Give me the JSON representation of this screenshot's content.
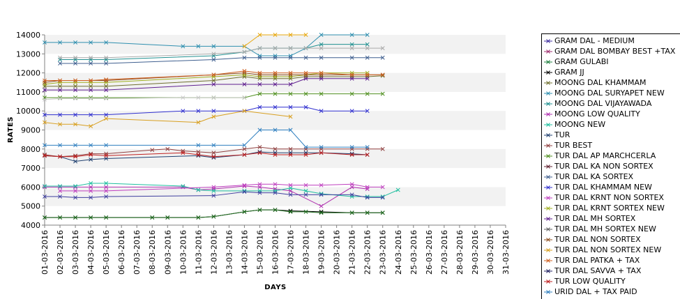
{
  "chart_data": {
    "type": "line",
    "xlabel": "DAYS",
    "ylabel": "RATES",
    "ylim": [
      4000,
      14000
    ],
    "yticks": [
      4000,
      5000,
      6000,
      7000,
      8000,
      9000,
      10000,
      11000,
      12000,
      13000,
      14000
    ],
    "grid": "alternating horizontal bands",
    "legend_position": "right",
    "categories": [
      "01-03-2016",
      "02-03-2016",
      "03-03-2016",
      "04-03-2016",
      "05-03-2016",
      "06-03-2016",
      "07-03-2016",
      "08-03-2016",
      "09-03-2016",
      "10-03-2016",
      "11-03-2016",
      "12-03-2016",
      "13-03-2016",
      "14-03-2016",
      "15-03-2016",
      "16-03-2016",
      "17-03-2016",
      "18-03-2016",
      "19-03-2016",
      "20-03-2016",
      "21-03-2016",
      "22-03-2016",
      "23-03-2016",
      "24-03-2016",
      "25-03-2016",
      "26-03-2016",
      "27-03-2016",
      "28-03-2016",
      "29-03-2016",
      "30-03-2016",
      "31-03-2016"
    ],
    "series": [
      {
        "name": "GRAM DAL - MEDIUM",
        "color": "#3f2f9f",
        "values": [
          null,
          null,
          null,
          null,
          null,
          null,
          null,
          null,
          null,
          null,
          null,
          null,
          null,
          null,
          null,
          null,
          null,
          null,
          null,
          null,
          null,
          null,
          null,
          null,
          null,
          null,
          null,
          null,
          null,
          null,
          null
        ]
      },
      {
        "name": "GRAM DAL BOMBAY BEST +TAX",
        "color": "#9f2f6f",
        "values": [
          null,
          null,
          null,
          null,
          null,
          null,
          null,
          null,
          null,
          null,
          null,
          null,
          null,
          null,
          null,
          null,
          null,
          null,
          null,
          null,
          null,
          null,
          null,
          null,
          null,
          null,
          null,
          null,
          null,
          null,
          null
        ]
      },
      {
        "name": "GRAM GULABI",
        "color": "#1f7f3f",
        "values": [
          null,
          null,
          null,
          null,
          null,
          null,
          null,
          null,
          null,
          null,
          null,
          null,
          null,
          null,
          null,
          null,
          null,
          null,
          null,
          null,
          null,
          null,
          null,
          null,
          null,
          null,
          null,
          null,
          null,
          null,
          null
        ]
      },
      {
        "name": "GRAM JJ",
        "color": "#000000",
        "values": [
          4400,
          4400,
          4400,
          4400,
          4400,
          null,
          null,
          4400,
          4400,
          null,
          4400,
          4450,
          null,
          4700,
          4800,
          4800,
          4750,
          null,
          4700,
          null,
          4650,
          4650,
          4650,
          null,
          null,
          null,
          null,
          null,
          null,
          null,
          null
        ]
      },
      {
        "name": "MOONG DAL KHAMMAM",
        "color": "#6f6f2f",
        "values": [
          11300,
          11300,
          11300,
          11300,
          11300,
          null,
          null,
          null,
          null,
          null,
          null,
          11600,
          null,
          11800,
          11700,
          11700,
          11700,
          11800,
          11800,
          null,
          11800,
          11800,
          11850,
          null,
          null,
          null,
          null,
          null,
          null,
          null,
          null
        ]
      },
      {
        "name": "MOONG DAL SURYAPET NEW",
        "color": "#2f8faf",
        "values": [
          13600,
          13600,
          13600,
          13600,
          13600,
          null,
          null,
          null,
          null,
          13400,
          13400,
          13400,
          null,
          13400,
          12900,
          12900,
          12900,
          13300,
          14000,
          null,
          14000,
          14000,
          null,
          null,
          null,
          null,
          null,
          null,
          null,
          null,
          null
        ]
      },
      {
        "name": "MOONG DAL VIJAYAWADA",
        "color": "#1f8f8f",
        "values": [
          null,
          12700,
          12700,
          12700,
          12700,
          null,
          null,
          null,
          null,
          null,
          null,
          12900,
          null,
          13100,
          13300,
          13300,
          13300,
          13300,
          13500,
          null,
          13500,
          13500,
          null,
          null,
          null,
          null,
          null,
          null,
          null,
          null,
          null
        ]
      },
      {
        "name": "MOONG LOW QUALITY",
        "color": "#af2faf",
        "values": [
          6000,
          6000,
          6000,
          6000,
          6000,
          null,
          null,
          null,
          null,
          6000,
          5850,
          5900,
          null,
          6050,
          6000,
          5900,
          5800,
          null,
          5000,
          null,
          6000,
          5900,
          null,
          null,
          null,
          null,
          null,
          null,
          null,
          null,
          null
        ]
      },
      {
        "name": "MOONG NEW",
        "color": "#1fbf9f",
        "values": [
          6050,
          6050,
          6050,
          6200,
          6200,
          null,
          null,
          null,
          null,
          6050,
          5850,
          5800,
          null,
          5800,
          5800,
          5800,
          5950,
          5800,
          5650,
          null,
          5500,
          5500,
          5500,
          5850,
          null,
          null,
          null,
          null,
          null,
          null,
          null
        ]
      },
      {
        "name": "TUR",
        "color": "#1f3f6f",
        "values": [
          7650,
          7600,
          7350,
          7450,
          7500,
          null,
          null,
          null,
          null,
          null,
          7650,
          7550,
          null,
          7700,
          7850,
          7800,
          7800,
          7800,
          7800,
          null,
          7750,
          7700,
          null,
          null,
          null,
          null,
          null,
          null,
          null,
          null,
          null
        ]
      },
      {
        "name": "TUR BEST",
        "color": "#8f3f3f",
        "values": [
          7700,
          7600,
          7650,
          7750,
          7750,
          null,
          null,
          7950,
          8000,
          7900,
          7850,
          7800,
          null,
          8000,
          8100,
          8000,
          8000,
          8000,
          8000,
          null,
          8000,
          8000,
          8000,
          null,
          null,
          null,
          null,
          null,
          null,
          null,
          null
        ]
      },
      {
        "name": "TUR DAL AP MARCHCERLA",
        "color": "#4f8f1f",
        "values": [
          10700,
          10700,
          10700,
          10700,
          10700,
          null,
          null,
          null,
          null,
          null,
          null,
          10700,
          null,
          10700,
          10900,
          10900,
          10900,
          10900,
          10900,
          null,
          10900,
          10900,
          10900,
          null,
          null,
          null,
          null,
          null,
          null,
          null,
          null
        ]
      },
      {
        "name": "TUR DAL KA NON SORTEX",
        "color": "#5f1f2f",
        "values": [
          null,
          null,
          null,
          null,
          null,
          null,
          null,
          null,
          null,
          null,
          null,
          null,
          null,
          null,
          null,
          null,
          null,
          null,
          null,
          null,
          null,
          null,
          null,
          null,
          null,
          null,
          null,
          null,
          null,
          null,
          null
        ]
      },
      {
        "name": "TUR DAL KA SORTEX",
        "color": "#3f5f8f",
        "values": [
          null,
          12500,
          12500,
          12500,
          12500,
          null,
          null,
          null,
          null,
          null,
          null,
          12700,
          null,
          12800,
          12800,
          12800,
          12800,
          12800,
          12800,
          null,
          12800,
          12800,
          12800,
          null,
          null,
          null,
          null,
          null,
          null,
          null,
          null
        ]
      },
      {
        "name": "TUR DAL KHAMMAM NEW",
        "color": "#2f2fcf",
        "values": [
          9800,
          9800,
          9800,
          9800,
          9800,
          null,
          null,
          null,
          null,
          10000,
          10000,
          10000,
          null,
          10000,
          10200,
          10200,
          10200,
          10200,
          10000,
          null,
          10000,
          10000,
          null,
          null,
          null,
          null,
          null,
          null,
          null,
          null,
          null
        ]
      },
      {
        "name": "TUR DAL KRNT NON SORTEX",
        "color": "#bf3fbf",
        "values": [
          null,
          5800,
          5800,
          5800,
          5800,
          null,
          null,
          null,
          null,
          null,
          null,
          6000,
          null,
          6100,
          6150,
          6150,
          6100,
          6100,
          6100,
          null,
          6150,
          6000,
          6000,
          null,
          null,
          null,
          null,
          null,
          null,
          null,
          null
        ]
      },
      {
        "name": "TUR DAL KRNT SORTEX NEW",
        "color": "#9faf1f",
        "values": [
          11400,
          11500,
          11500,
          11500,
          11500,
          null,
          null,
          null,
          null,
          null,
          null,
          11800,
          null,
          11900,
          11800,
          11800,
          11800,
          11900,
          12000,
          null,
          12000,
          12000,
          null,
          null,
          null,
          null,
          null,
          null,
          null,
          null,
          null
        ]
      },
      {
        "name": "TUR DAL MH SORTEX",
        "color": "#5f1f8f",
        "values": [
          11100,
          11100,
          11100,
          11100,
          11100,
          null,
          null,
          null,
          null,
          null,
          null,
          11400,
          null,
          11400,
          11400,
          11400,
          11400,
          11700,
          11700,
          null,
          11700,
          11700,
          null,
          null,
          null,
          null,
          null,
          null,
          null,
          null,
          null
        ]
      },
      {
        "name": "TUR DAL MH SORTEX NEW",
        "color": "#5f5f5f",
        "values": [
          null,
          null,
          null,
          null,
          null,
          null,
          null,
          null,
          null,
          null,
          null,
          null,
          null,
          null,
          null,
          null,
          null,
          null,
          null,
          null,
          null,
          null,
          null,
          null,
          null,
          null,
          null,
          null,
          null,
          null,
          null
        ]
      },
      {
        "name": "TUR DAL NON SORTEX",
        "color": "#8f4f1f",
        "values": [
          11500,
          11600,
          11600,
          11600,
          11600,
          null,
          null,
          null,
          null,
          null,
          null,
          11900,
          null,
          12000,
          11900,
          11900,
          11900,
          11900,
          11900,
          null,
          11900,
          11900,
          11900,
          null,
          null,
          null,
          null,
          null,
          null,
          null,
          null
        ]
      },
      {
        "name": "TUR DAL NON SORTEX NEW",
        "color": "#d89f1f",
        "values": [
          9400,
          9300,
          9300,
          9200,
          9600,
          null,
          null,
          null,
          null,
          null,
          9400,
          9700,
          null,
          10000,
          null,
          null,
          9700,
          null,
          null,
          null,
          null,
          null,
          null,
          null,
          null,
          null,
          null,
          null,
          null,
          null,
          null
        ]
      },
      {
        "name": "TUR DAL PATKA + TAX",
        "color": "#cf5f1f",
        "values": [
          11600,
          11600,
          11600,
          11600,
          11650,
          null,
          null,
          null,
          null,
          null,
          null,
          11900,
          null,
          12100,
          12000,
          12000,
          12000,
          12000,
          12000,
          null,
          11900,
          11900,
          11900,
          null,
          null,
          null,
          null,
          null,
          null,
          null,
          null
        ]
      },
      {
        "name": "TUR DAL SAVVA + TAX",
        "color": "#1f1f5f",
        "values": [
          null,
          null,
          null,
          null,
          null,
          null,
          null,
          null,
          null,
          null,
          null,
          null,
          null,
          null,
          null,
          null,
          null,
          null,
          null,
          null,
          null,
          null,
          null,
          null,
          null,
          null,
          null,
          null,
          null,
          null,
          null
        ]
      },
      {
        "name": "TUR LOW QUALITY",
        "color": "#bf1f1f",
        "values": [
          7650,
          7600,
          7600,
          7700,
          7650,
          null,
          null,
          null,
          null,
          7800,
          7700,
          7600,
          null,
          7700,
          7800,
          7700,
          7700,
          7700,
          7800,
          null,
          7700,
          7700,
          null,
          null,
          null,
          null,
          null,
          null,
          null,
          null,
          null
        ]
      },
      {
        "name": "URID DAL + TAX PAID",
        "color": "#2f7fbf",
        "values": [
          8200,
          8200,
          8200,
          8200,
          8200,
          null,
          null,
          null,
          null,
          null,
          8200,
          8200,
          null,
          8200,
          9000,
          9000,
          9000,
          8100,
          8100,
          null,
          8100,
          8100,
          null,
          null,
          null,
          null,
          null,
          null,
          null,
          null,
          null
        ]
      },
      {
        "name": "",
        "color": "#e8a80f",
        "values": [
          null,
          null,
          null,
          null,
          null,
          null,
          null,
          null,
          null,
          null,
          null,
          null,
          null,
          13400,
          14000,
          14000,
          14000,
          14000,
          null,
          null,
          null,
          null,
          null,
          null,
          null,
          null,
          null,
          null,
          null,
          null,
          null
        ]
      },
      {
        "name": "",
        "color": "#aaaaaa",
        "values": [
          null,
          12800,
          12800,
          12800,
          12800,
          null,
          null,
          null,
          null,
          null,
          null,
          13000,
          null,
          13100,
          13300,
          13300,
          13300,
          13300,
          13300,
          null,
          13300,
          13300,
          13300,
          null,
          null,
          null,
          null,
          null,
          null,
          null,
          null
        ]
      },
      {
        "name": "",
        "color": "#3f3f9f",
        "values": [
          5500,
          5500,
          5450,
          5450,
          5500,
          null,
          null,
          null,
          null,
          null,
          null,
          5550,
          null,
          5750,
          5700,
          5700,
          5600,
          5600,
          5600,
          null,
          5600,
          5450,
          5450,
          null,
          null,
          null,
          null,
          null,
          null,
          null,
          null
        ]
      },
      {
        "name": "",
        "color": "#1f6f1f",
        "values": [
          4400,
          4400,
          4400,
          4400,
          4400,
          null,
          null,
          4400,
          4400,
          null,
          4400,
          4450,
          null,
          4700,
          4800,
          4800,
          4700,
          4700,
          4650,
          null,
          4650,
          4650,
          4650,
          null,
          null,
          null,
          null,
          null,
          null,
          null,
          null
        ]
      },
      {
        "name": "",
        "color": "#c8c8c8",
        "values": [
          10600,
          10650,
          10650,
          10650,
          10650,
          null,
          null,
          null,
          null,
          10700,
          10700,
          10700,
          null,
          10700,
          null,
          null,
          null,
          null,
          null,
          null,
          null,
          null,
          null,
          null,
          null,
          null,
          null,
          null,
          null,
          null,
          null
        ]
      }
    ]
  }
}
